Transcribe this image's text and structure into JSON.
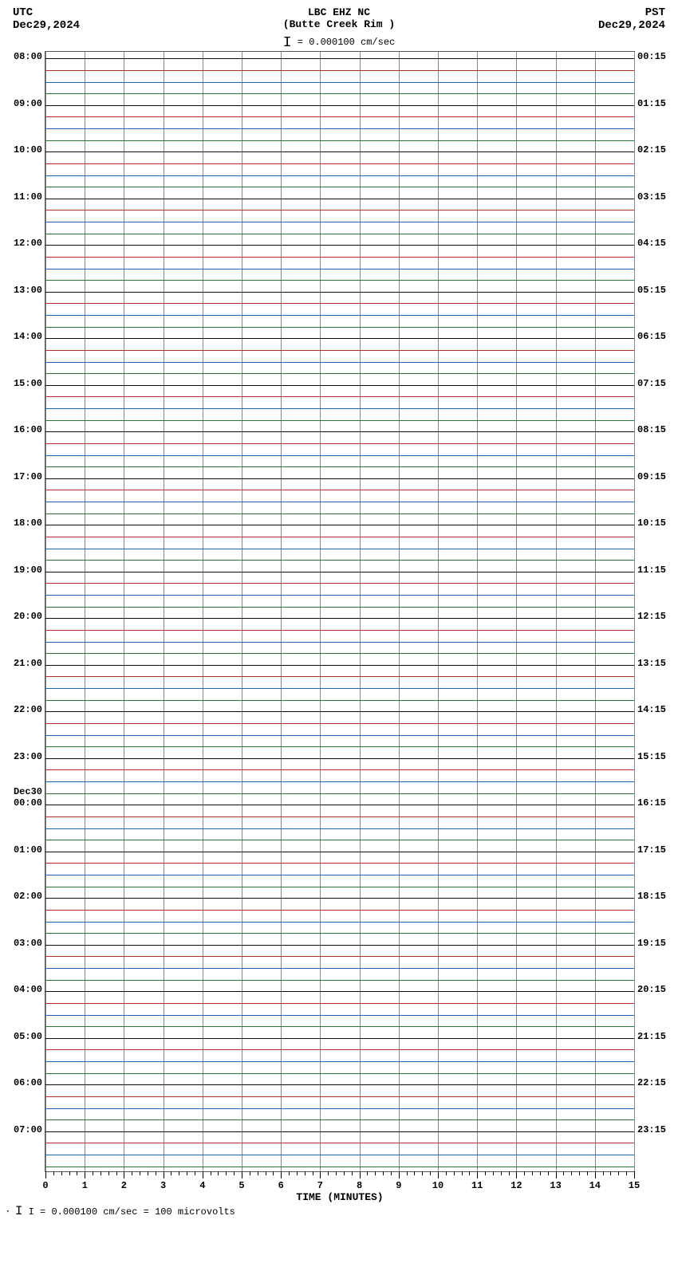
{
  "header": {
    "utc_label": "UTC",
    "utc_date": "Dec29,2024",
    "pst_label": "PST",
    "pst_date": "Dec29,2024",
    "station": "LBC EHZ NC",
    "location": "(Butte Creek Rim )",
    "scale_prefix": "I",
    "scale_text": " = 0.000100 cm/sec"
  },
  "footer": {
    "text": "I = 0.000100 cm/sec =    100 microvolts"
  },
  "chart": {
    "type": "seismogram",
    "background": "#ffffff",
    "border_color": "#555555",
    "vgrid_color": "#888888",
    "sub_vgrid_color": "#cccccc",
    "trace_colors": [
      "#000000",
      "#b02020",
      "#1060b0",
      "#207030"
    ],
    "trace_opacity": 0.95,
    "x": {
      "label": "TIME (MINUTES)",
      "min": 0,
      "max": 15,
      "major_ticks": [
        0,
        1,
        2,
        3,
        4,
        5,
        6,
        7,
        8,
        9,
        10,
        11,
        12,
        13,
        14,
        15
      ],
      "minor_per_major": 5,
      "tick_len_major": 9,
      "tick_len_minor": 5,
      "font_size": 12
    },
    "left_hours": {
      "labels": [
        {
          "text": "08:00",
          "idx": 0
        },
        {
          "text": "09:00",
          "idx": 4
        },
        {
          "text": "10:00",
          "idx": 8
        },
        {
          "text": "11:00",
          "idx": 12
        },
        {
          "text": "12:00",
          "idx": 16
        },
        {
          "text": "13:00",
          "idx": 20
        },
        {
          "text": "14:00",
          "idx": 24
        },
        {
          "text": "15:00",
          "idx": 28
        },
        {
          "text": "16:00",
          "idx": 32
        },
        {
          "text": "17:00",
          "idx": 36
        },
        {
          "text": "18:00",
          "idx": 40
        },
        {
          "text": "19:00",
          "idx": 44
        },
        {
          "text": "20:00",
          "idx": 48
        },
        {
          "text": "21:00",
          "idx": 52
        },
        {
          "text": "22:00",
          "idx": 56
        },
        {
          "text": "23:00",
          "idx": 60
        },
        {
          "text": "Dec30",
          "idx": 63
        },
        {
          "text": "00:00",
          "idx": 64
        },
        {
          "text": "01:00",
          "idx": 68
        },
        {
          "text": "02:00",
          "idx": 72
        },
        {
          "text": "03:00",
          "idx": 76
        },
        {
          "text": "04:00",
          "idx": 80
        },
        {
          "text": "05:00",
          "idx": 84
        },
        {
          "text": "06:00",
          "idx": 88
        },
        {
          "text": "07:00",
          "idx": 92
        }
      ]
    },
    "right_hours": {
      "labels": [
        {
          "text": "00:15",
          "idx": 0
        },
        {
          "text": "01:15",
          "idx": 4
        },
        {
          "text": "02:15",
          "idx": 8
        },
        {
          "text": "03:15",
          "idx": 12
        },
        {
          "text": "04:15",
          "idx": 16
        },
        {
          "text": "05:15",
          "idx": 20
        },
        {
          "text": "06:15",
          "idx": 24
        },
        {
          "text": "07:15",
          "idx": 28
        },
        {
          "text": "08:15",
          "idx": 32
        },
        {
          "text": "09:15",
          "idx": 36
        },
        {
          "text": "10:15",
          "idx": 40
        },
        {
          "text": "11:15",
          "idx": 44
        },
        {
          "text": "12:15",
          "idx": 48
        },
        {
          "text": "13:15",
          "idx": 52
        },
        {
          "text": "14:15",
          "idx": 56
        },
        {
          "text": "15:15",
          "idx": 60
        },
        {
          "text": "16:15",
          "idx": 64
        },
        {
          "text": "17:15",
          "idx": 68
        },
        {
          "text": "18:15",
          "idx": 72
        },
        {
          "text": "19:15",
          "idx": 76
        },
        {
          "text": "20:15",
          "idx": 80
        },
        {
          "text": "21:15",
          "idx": 84
        },
        {
          "text": "22:15",
          "idx": 88
        },
        {
          "text": "23:15",
          "idx": 92
        }
      ]
    },
    "n_traces": 96,
    "trace_row_height": 14.6
  }
}
